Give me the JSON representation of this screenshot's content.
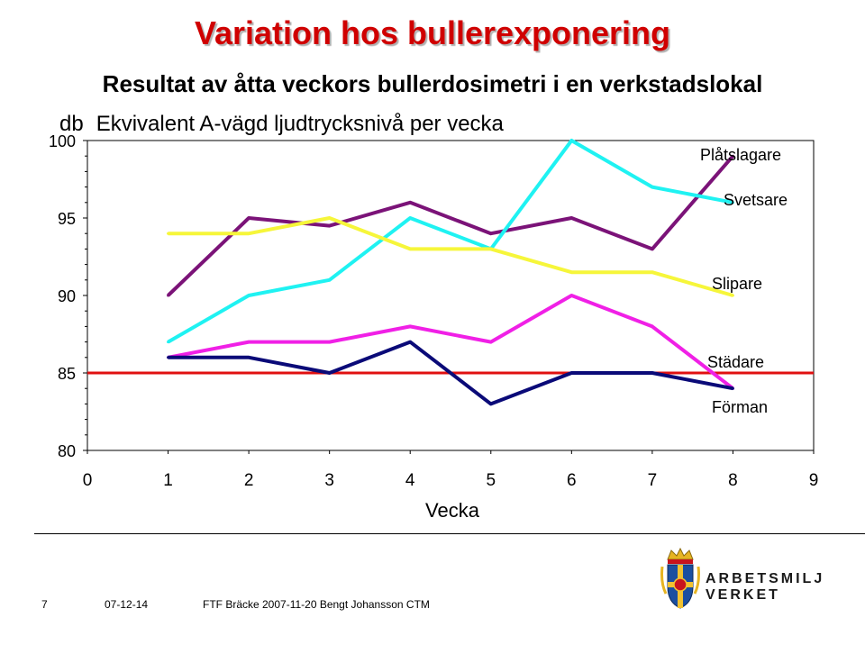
{
  "header": {
    "title": "Variation hos bullerexponering",
    "subtitle": "Resultat av åtta veckors bullerdosimetri i en verkstadslokal"
  },
  "axis_header": {
    "unit": "db",
    "quantity": "Ekvivalent A-vägd ljudtrycksnivå per vecka"
  },
  "chart_data": {
    "type": "line",
    "title": "Variation hos bullerexponering",
    "subtitle": "Resultat av åtta veckors bullerdosimetri i en verkstadslokal",
    "xlabel": "Vecka",
    "ylabel": "db",
    "xlim": [
      0,
      9
    ],
    "ylim": [
      80,
      100
    ],
    "xticks": [
      0,
      1,
      2,
      3,
      4,
      5,
      6,
      7,
      8,
      9
    ],
    "yticks": [
      80,
      85,
      90,
      95,
      100
    ],
    "grid": false,
    "legend": "inline labels at line ends",
    "series": [
      {
        "name": "Plåtslagare",
        "color": "#7b1378",
        "x": [
          1,
          2,
          3,
          4,
          5,
          6,
          7,
          8
        ],
        "y": [
          90,
          95,
          94.5,
          96,
          94,
          95,
          93,
          99
        ]
      },
      {
        "name": "Svetsare",
        "color": "#1ff2f2",
        "x": [
          1,
          2,
          3,
          4,
          5,
          6,
          7,
          8
        ],
        "y": [
          87,
          90,
          91,
          95,
          93,
          100,
          97,
          96
        ]
      },
      {
        "name": "Slipare",
        "color": "#f6f63a",
        "x": [
          1,
          2,
          3,
          4,
          5,
          6,
          7,
          8
        ],
        "y": [
          94,
          94,
          95,
          93,
          93,
          91.5,
          91.5,
          90
        ]
      },
      {
        "name": "Städare",
        "color": "#f020e6",
        "x": [
          1,
          2,
          3,
          4,
          5,
          6,
          7,
          8
        ],
        "y": [
          86,
          87,
          87,
          88,
          87,
          90,
          88,
          84
        ]
      },
      {
        "name": "Förman",
        "color": "#0a0a78",
        "x": [
          1,
          2,
          3,
          4,
          5,
          6,
          7,
          8
        ],
        "y": [
          86,
          86,
          85,
          87,
          83,
          85,
          85,
          84
        ]
      }
    ],
    "reference_line": {
      "y": 85,
      "color": "#e01010"
    }
  },
  "footer": {
    "slide_number": "7",
    "date": "07-12-14",
    "source": "FTF Bräcke 2007-11-20  Bengt Johansson CTM"
  },
  "logo": {
    "text_line1": "ARBETSMILJÖ",
    "text_line2": "VERKET"
  }
}
